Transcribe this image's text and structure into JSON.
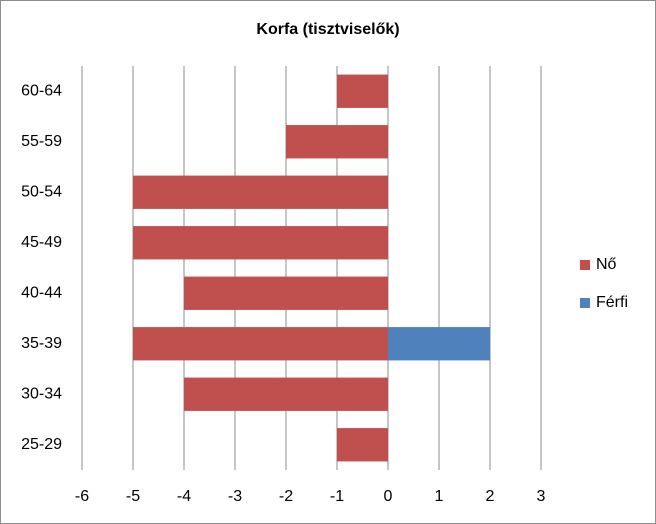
{
  "chart_data": {
    "type": "hbar",
    "title": "Korfa (tisztviselők)",
    "categories": [
      "60-64",
      "55-59",
      "50-54",
      "45-49",
      "40-44",
      "35-39",
      "30-34",
      "25-29"
    ],
    "series": [
      {
        "name": "Nő",
        "color": "#c0504d",
        "values": [
          -1,
          -2,
          -5,
          -5,
          -4,
          -5,
          -4,
          -1
        ]
      },
      {
        "name": "Férfi",
        "color": "#4f81bd",
        "values": [
          0,
          0,
          0,
          0,
          0,
          2,
          0,
          0
        ]
      }
    ],
    "xlim": [
      -6,
      3
    ],
    "xticks": [
      -6,
      -5,
      -4,
      -3,
      -2,
      -1,
      0,
      1,
      2,
      3
    ],
    "grid": true,
    "legend": "right"
  }
}
